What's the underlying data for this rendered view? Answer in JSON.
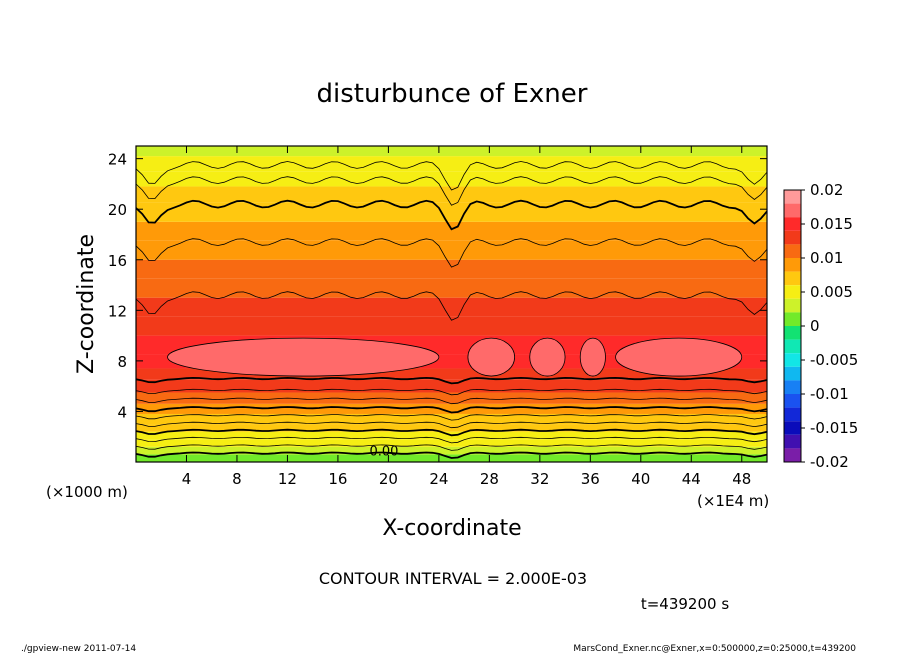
{
  "chart_data": {
    "type": "heatmap",
    "title": "disturbunce of Exner",
    "xlabel": "X-coordinate",
    "ylabel": "Z-coordinate",
    "x_unit_label": "(×1E4 m)",
    "y_unit_label": "(×1000 m)",
    "xlim": [
      0,
      50
    ],
    "ylim": [
      0,
      25
    ],
    "x_ticks": [
      4,
      8,
      12,
      16,
      20,
      24,
      28,
      32,
      36,
      40,
      44,
      48
    ],
    "y_ticks": [
      4,
      8,
      12,
      16,
      20,
      24
    ],
    "colorbar": {
      "ticks": [
        "0.02",
        "0.015",
        "0.01",
        "0.005",
        "0",
        "-0.005",
        "-0.01",
        "-0.015",
        "-0.02"
      ],
      "range": [
        -0.02,
        0.02
      ],
      "levels": [
        {
          "value": 0.019,
          "color": "#ff9a9a"
        },
        {
          "value": 0.017,
          "color": "#ff6a6a"
        },
        {
          "value": 0.015,
          "color": "#ff2a2a"
        },
        {
          "value": 0.013,
          "color": "#f23a1a"
        },
        {
          "value": 0.011,
          "color": "#f86a12"
        },
        {
          "value": 0.009,
          "color": "#ff9a08"
        },
        {
          "value": 0.007,
          "color": "#ffc810"
        },
        {
          "value": 0.005,
          "color": "#f6ee14"
        },
        {
          "value": 0.003,
          "color": "#cdf22a"
        },
        {
          "value": 0.001,
          "color": "#72ea2a"
        },
        {
          "value": -0.001,
          "color": "#12e272"
        },
        {
          "value": -0.003,
          "color": "#10e8b4"
        },
        {
          "value": -0.005,
          "color": "#12e6e6"
        },
        {
          "value": -0.007,
          "color": "#10b8f0"
        },
        {
          "value": -0.009,
          "color": "#1880f4"
        },
        {
          "value": -0.011,
          "color": "#1a52f0"
        },
        {
          "value": -0.013,
          "color": "#1228d8"
        },
        {
          "value": -0.015,
          "color": "#0a0cba"
        },
        {
          "value": -0.017,
          "color": "#4010b0"
        },
        {
          "value": -0.019,
          "color": "#7a1ea8"
        }
      ]
    },
    "layers": [
      {
        "z": 0.6,
        "value": 0.001
      },
      {
        "z": 1.2,
        "value": 0.003
      },
      {
        "z": 1.8,
        "value": 0.004
      },
      {
        "z": 2.4,
        "value": 0.005
      },
      {
        "z": 3.0,
        "value": 0.006
      },
      {
        "z": 3.8,
        "value": 0.007
      },
      {
        "z": 4.6,
        "value": 0.009
      },
      {
        "z": 5.5,
        "value": 0.01
      },
      {
        "z": 6.5,
        "value": 0.012
      },
      {
        "z": 7.4,
        "value": 0.013
      },
      {
        "z": 8.5,
        "value": 0.015
      },
      {
        "z": 10.0,
        "value": 0.014
      },
      {
        "z": 11.5,
        "value": 0.013
      },
      {
        "z": 13.0,
        "value": 0.012
      },
      {
        "z": 14.5,
        "value": 0.011
      },
      {
        "z": 16.0,
        "value": 0.01
      },
      {
        "z": 17.5,
        "value": 0.009
      },
      {
        "z": 19.0,
        "value": 0.008
      },
      {
        "z": 20.5,
        "value": 0.007
      },
      {
        "z": 21.8,
        "value": 0.006
      },
      {
        "z": 23.0,
        "value": 0.005
      },
      {
        "z": 24.2,
        "value": 0.004
      },
      {
        "z": 25.0,
        "value": 0.003
      }
    ],
    "contour_lines": [
      0.7,
      1.3,
      1.9,
      2.5,
      3.1,
      3.7,
      4.3,
      5.0,
      5.7,
      6.6,
      13.2,
      17.4,
      20.4,
      22.3,
      23.5
    ],
    "contour_labels": [
      "0.00"
    ],
    "annotations": [
      "CONTOUR INTERVAL = 2.000E-03",
      "t=439200 s"
    ]
  },
  "footer": {
    "left": "./gpview-new   2011-07-14",
    "right": "MarsCond_Exner.nc@Exner,x=0:500000,z=0:25000,t=439200"
  }
}
